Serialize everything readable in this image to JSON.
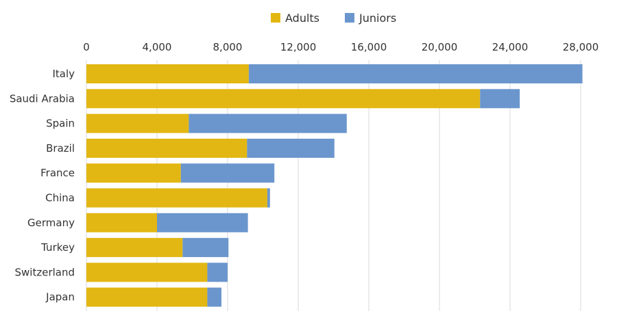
{
  "chart_data": {
    "type": "bar",
    "orientation": "horizontal",
    "stacked": true,
    "title": "",
    "xlabel": "",
    "ylabel": "",
    "xlim": [
      0,
      28000
    ],
    "xticks": [
      0,
      4000,
      8000,
      12000,
      16000,
      20000,
      24000,
      28000
    ],
    "xtick_labels": [
      "0",
      "4,000",
      "8,000",
      "12,000",
      "16,000",
      "20,000",
      "24,000",
      "28,000"
    ],
    "grid": true,
    "legend_position": "top-center",
    "categories": [
      "Italy",
      "Saudi Arabia",
      "Spain",
      "Brazil",
      "France",
      "China",
      "Germany",
      "Turkey",
      "Switzerland",
      "Japan"
    ],
    "series": [
      {
        "name": "Adults",
        "color": "#e2b713",
        "values": [
          9200,
          22300,
          5800,
          9100,
          5350,
          10250,
          4000,
          5450,
          6850,
          6850
        ]
      },
      {
        "name": "Juniors",
        "color": "#6b96cd",
        "values": [
          18900,
          2250,
          8950,
          4950,
          5300,
          150,
          5150,
          2600,
          1150,
          800
        ]
      }
    ]
  }
}
